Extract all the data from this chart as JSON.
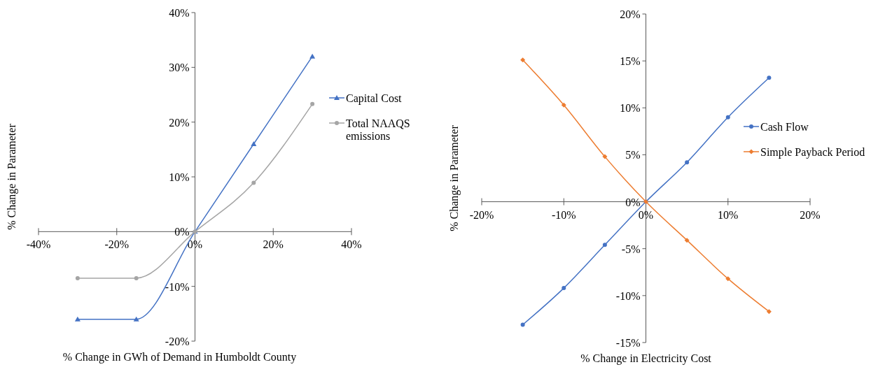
{
  "chart_data": [
    {
      "type": "line",
      "xlabel": "% Change in GWh of Demand in Humboldt County",
      "ylabel": "% Change in Parameter",
      "x": [
        -30,
        -15,
        0,
        15,
        30
      ],
      "series": [
        {
          "name": "Capital Cost",
          "color": "#4472c4",
          "marker": "triangle",
          "values": [
            -16,
            -16,
            0,
            16,
            32
          ]
        },
        {
          "name": "Total NAAQS emissions",
          "color": "#a5a5a5",
          "marker": "circle",
          "values": [
            -8.5,
            -8.5,
            0,
            8.9,
            23.3
          ]
        }
      ],
      "xlim": [
        -40,
        40
      ],
      "xticks": [
        {
          "value": -40,
          "label": "-40%"
        },
        {
          "value": -20,
          "label": "-20%"
        },
        {
          "value": 0,
          "label": "0%"
        },
        {
          "value": 20,
          "label": "20%"
        },
        {
          "value": 40,
          "label": "40%"
        }
      ],
      "ylim": [
        -20,
        40
      ],
      "yticks": [
        {
          "value": -20,
          "label": "-20%"
        },
        {
          "value": -10,
          "label": "-10%"
        },
        {
          "value": 0,
          "label": "0%"
        },
        {
          "value": 10,
          "label": "10%"
        },
        {
          "value": 20,
          "label": "20%"
        },
        {
          "value": 30,
          "label": "30%"
        },
        {
          "value": 40,
          "label": "40%"
        }
      ],
      "grid": false,
      "legend": "right"
    },
    {
      "type": "line",
      "xlabel": "% Change in Electricity Cost",
      "ylabel": "% Change in Parameter",
      "x": [
        -15,
        -10,
        -5,
        0,
        5,
        10,
        15
      ],
      "series": [
        {
          "name": "Cash Flow",
          "color": "#4472c4",
          "marker": "circle",
          "values": [
            -13.1,
            -9.2,
            -4.6,
            0,
            4.2,
            9.0,
            13.2
          ]
        },
        {
          "name": "Simple Payback Period",
          "color": "#ed7d31",
          "marker": "diamond",
          "values": [
            15.1,
            10.3,
            4.8,
            0,
            -4.1,
            -8.2,
            -11.7
          ]
        }
      ],
      "xlim": [
        -20,
        20
      ],
      "xticks": [
        {
          "value": -20,
          "label": "-20%"
        },
        {
          "value": -10,
          "label": "-10%"
        },
        {
          "value": 0,
          "label": "0%"
        },
        {
          "value": 10,
          "label": "10%"
        },
        {
          "value": 20,
          "label": "20%"
        }
      ],
      "ylim": [
        -15,
        20
      ],
      "yticks": [
        {
          "value": -15,
          "label": "-15%"
        },
        {
          "value": -10,
          "label": "-10%"
        },
        {
          "value": -5,
          "label": "-5%"
        },
        {
          "value": 0,
          "label": "0%"
        },
        {
          "value": 5,
          "label": "5%"
        },
        {
          "value": 10,
          "label": "10%"
        },
        {
          "value": 15,
          "label": "15%"
        },
        {
          "value": 20,
          "label": "20%"
        }
      ],
      "grid": false,
      "legend": "right"
    }
  ]
}
